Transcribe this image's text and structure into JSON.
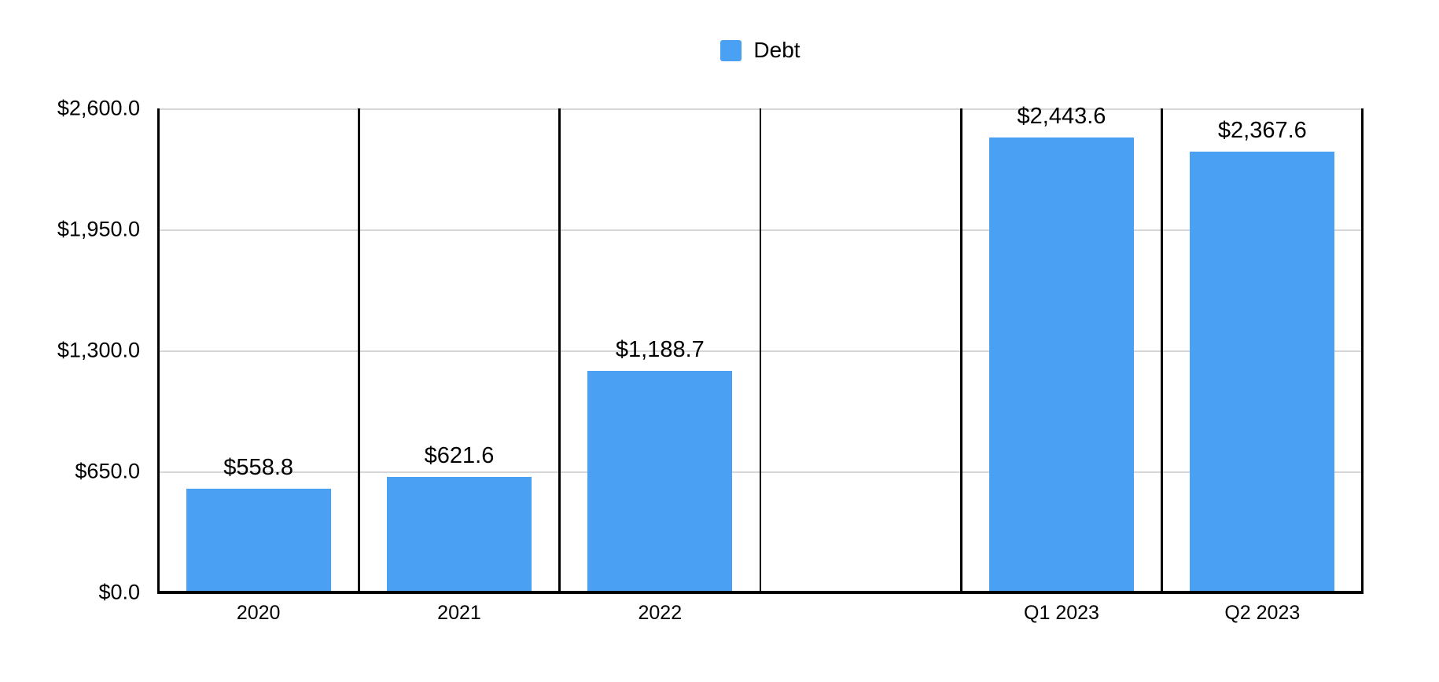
{
  "legend": {
    "label": "Debt"
  },
  "colors": {
    "bar": "#4AA0F2",
    "gridline": "#D6D6D6",
    "axis": "#000000",
    "background": "#FFFFFF",
    "text": "#000000"
  },
  "chart_data": {
    "type": "bar",
    "title": "",
    "xlabel": "",
    "ylabel": "",
    "series_name": "Debt",
    "categories": [
      "2020",
      "2021",
      "2022",
      "",
      "Q1 2023",
      "Q2 2023"
    ],
    "values": [
      558.8,
      621.6,
      1188.7,
      null,
      2443.6,
      2367.6
    ],
    "bar_labels": [
      "$558.8",
      "$621.6",
      "$1,188.7",
      null,
      "$2,443.6",
      "$2,367.6"
    ],
    "ylim": [
      0,
      2600
    ],
    "yticks": [
      0,
      650,
      1300,
      1950,
      2600
    ],
    "ytick_labels": [
      "$0.0",
      "$650.0",
      "$1,300.0",
      "$1,950.0",
      "$2,600.0"
    ],
    "grid": true,
    "legend_position": "top-center",
    "column_dividers": true,
    "empty_column_index": 3
  }
}
